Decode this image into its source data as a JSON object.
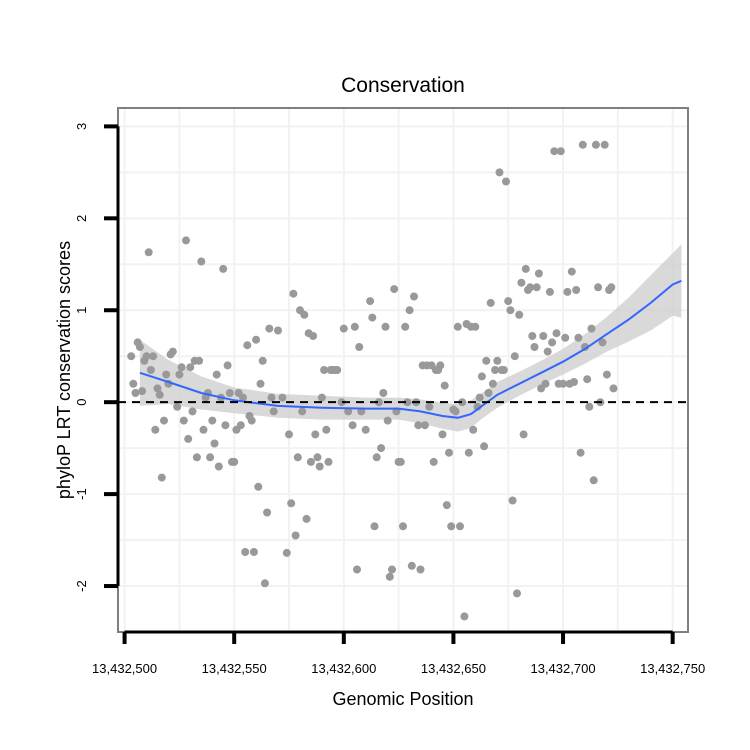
{
  "chart_data": {
    "type": "scatter",
    "title": "Conservation",
    "xlabel": "Genomic Position",
    "ylabel": "phyloP LRT conservation scores",
    "xlim": [
      13432497,
      13432757
    ],
    "ylim": [
      -2.5,
      3.2
    ],
    "x_ticks": [
      13432500,
      13432550,
      13432600,
      13432650,
      13432700,
      13432750
    ],
    "x_tick_labels": [
      "13,432,500",
      "13,432,550",
      "13,432,600",
      "13,432,650",
      "13,432,700",
      "13,432,750"
    ],
    "y_ticks": [
      -2,
      -1,
      0,
      1,
      2,
      3
    ],
    "y_tick_labels": [
      "-2",
      "-1",
      "0",
      "1",
      "2",
      "3"
    ],
    "reference_line": {
      "y": 0,
      "style": "dashed"
    },
    "colors": {
      "points": "#999999",
      "smooth": "#3366ff",
      "ribbon": "#cccccc",
      "panel_border": "#7f7f7f",
      "grid": "#f2f2f2"
    },
    "points": [
      [
        13432503,
        0.5
      ],
      [
        13432504,
        0.2
      ],
      [
        13432505,
        0.1
      ],
      [
        13432506,
        0.65
      ],
      [
        13432507,
        0.6
      ],
      [
        13432508,
        0.12
      ],
      [
        13432509,
        0.45
      ],
      [
        13432510,
        0.5
      ],
      [
        13432511,
        1.63
      ],
      [
        13432512,
        0.35
      ],
      [
        13432513,
        0.5
      ],
      [
        13432514,
        -0.3
      ],
      [
        13432515,
        0.15
      ],
      [
        13432516,
        0.08
      ],
      [
        13432517,
        -0.82
      ],
      [
        13432518,
        -0.2
      ],
      [
        13432519,
        0.3
      ],
      [
        13432520,
        0.2
      ],
      [
        13432521,
        0.52
      ],
      [
        13432522,
        0.55
      ],
      [
        13432524,
        -0.05
      ],
      [
        13432525,
        0.3
      ],
      [
        13432526,
        0.38
      ],
      [
        13432527,
        -0.2
      ],
      [
        13432528,
        1.76
      ],
      [
        13432529,
        -0.4
      ],
      [
        13432530,
        0.38
      ],
      [
        13432531,
        -0.1
      ],
      [
        13432532,
        0.45
      ],
      [
        13432533,
        -0.6
      ],
      [
        13432534,
        0.45
      ],
      [
        13432535,
        1.53
      ],
      [
        13432536,
        -0.3
      ],
      [
        13432537,
        0.05
      ],
      [
        13432538,
        0.1
      ],
      [
        13432539,
        -0.6
      ],
      [
        13432540,
        -0.2
      ],
      [
        13432541,
        -0.45
      ],
      [
        13432542,
        0.3
      ],
      [
        13432543,
        -0.7
      ],
      [
        13432544,
        0.05
      ],
      [
        13432545,
        1.45
      ],
      [
        13432546,
        -0.25
      ],
      [
        13432547,
        0.4
      ],
      [
        13432548,
        0.1
      ],
      [
        13432549,
        -0.65
      ],
      [
        13432550,
        -0.65
      ],
      [
        13432551,
        -0.3
      ],
      [
        13432552,
        0.1
      ],
      [
        13432553,
        -0.25
      ],
      [
        13432554,
        0.05
      ],
      [
        13432555,
        -1.63
      ],
      [
        13432556,
        0.62
      ],
      [
        13432557,
        -0.15
      ],
      [
        13432558,
        -0.2
      ],
      [
        13432559,
        -1.63
      ],
      [
        13432560,
        0.68
      ],
      [
        13432561,
        -0.92
      ],
      [
        13432562,
        0.2
      ],
      [
        13432563,
        0.45
      ],
      [
        13432564,
        -1.97
      ],
      [
        13432565,
        -1.2
      ],
      [
        13432566,
        0.8
      ],
      [
        13432567,
        0.05
      ],
      [
        13432568,
        -0.1
      ],
      [
        13432570,
        0.78
      ],
      [
        13432572,
        0.05
      ],
      [
        13432574,
        -1.64
      ],
      [
        13432575,
        -0.35
      ],
      [
        13432576,
        -1.1
      ],
      [
        13432577,
        1.18
      ],
      [
        13432578,
        -1.45
      ],
      [
        13432579,
        -0.6
      ],
      [
        13432580,
        1.0
      ],
      [
        13432581,
        -0.1
      ],
      [
        13432582,
        0.95
      ],
      [
        13432583,
        -1.27
      ],
      [
        13432584,
        0.75
      ],
      [
        13432585,
        -0.65
      ],
      [
        13432586,
        0.72
      ],
      [
        13432587,
        -0.35
      ],
      [
        13432588,
        -0.6
      ],
      [
        13432589,
        -0.7
      ],
      [
        13432590,
        0.05
      ],
      [
        13432591,
        0.35
      ],
      [
        13432592,
        -0.3
      ],
      [
        13432593,
        -0.65
      ],
      [
        13432594,
        0.35
      ],
      [
        13432595,
        0.35
      ],
      [
        13432596,
        0.35
      ],
      [
        13432597,
        0.35
      ],
      [
        13432599,
        0.0
      ],
      [
        13432600,
        0.8
      ],
      [
        13432602,
        -0.1
      ],
      [
        13432604,
        -0.25
      ],
      [
        13432605,
        0.82
      ],
      [
        13432606,
        -1.82
      ],
      [
        13432607,
        0.6
      ],
      [
        13432608,
        -0.1
      ],
      [
        13432610,
        -0.3
      ],
      [
        13432612,
        1.1
      ],
      [
        13432613,
        0.92
      ],
      [
        13432614,
        -1.35
      ],
      [
        13432615,
        -0.6
      ],
      [
        13432616,
        0.0
      ],
      [
        13432617,
        -0.5
      ],
      [
        13432618,
        0.1
      ],
      [
        13432619,
        0.82
      ],
      [
        13432620,
        -0.2
      ],
      [
        13432621,
        -1.9
      ],
      [
        13432622,
        -1.82
      ],
      [
        13432623,
        1.23
      ],
      [
        13432624,
        -0.1
      ],
      [
        13432625,
        -0.65
      ],
      [
        13432626,
        -0.65
      ],
      [
        13432627,
        -1.35
      ],
      [
        13432628,
        0.82
      ],
      [
        13432629,
        0.0
      ],
      [
        13432630,
        1.0
      ],
      [
        13432631,
        -1.78
      ],
      [
        13432632,
        1.15
      ],
      [
        13432633,
        0.0
      ],
      [
        13432634,
        -0.25
      ],
      [
        13432635,
        -1.82
      ],
      [
        13432636,
        0.4
      ],
      [
        13432637,
        -0.25
      ],
      [
        13432638,
        0.4
      ],
      [
        13432639,
        -0.05
      ],
      [
        13432640,
        0.4
      ],
      [
        13432641,
        -0.65
      ],
      [
        13432642,
        0.35
      ],
      [
        13432643,
        0.35
      ],
      [
        13432644,
        0.4
      ],
      [
        13432645,
        -0.35
      ],
      [
        13432646,
        0.18
      ],
      [
        13432647,
        -1.12
      ],
      [
        13432648,
        -0.55
      ],
      [
        13432649,
        -1.35
      ],
      [
        13432650,
        -0.08
      ],
      [
        13432651,
        -0.1
      ],
      [
        13432652,
        0.82
      ],
      [
        13432653,
        -1.35
      ],
      [
        13432654,
        0.0
      ],
      [
        13432655,
        -2.33
      ],
      [
        13432656,
        0.85
      ],
      [
        13432657,
        -0.55
      ],
      [
        13432658,
        0.82
      ],
      [
        13432659,
        -0.3
      ],
      [
        13432660,
        0.82
      ],
      [
        13432661,
        -0.05
      ],
      [
        13432662,
        0.05
      ],
      [
        13432663,
        0.28
      ],
      [
        13432664,
        -0.48
      ],
      [
        13432665,
        0.45
      ],
      [
        13432666,
        0.1
      ],
      [
        13432667,
        1.08
      ],
      [
        13432668,
        0.2
      ],
      [
        13432669,
        0.35
      ],
      [
        13432670,
        0.45
      ],
      [
        13432671,
        2.5
      ],
      [
        13432672,
        0.35
      ],
      [
        13432673,
        0.35
      ],
      [
        13432674,
        2.4
      ],
      [
        13432675,
        1.1
      ],
      [
        13432676,
        1.0
      ],
      [
        13432677,
        -1.07
      ],
      [
        13432678,
        0.5
      ],
      [
        13432679,
        -2.08
      ],
      [
        13432680,
        0.95
      ],
      [
        13432681,
        1.3
      ],
      [
        13432682,
        -0.35
      ],
      [
        13432683,
        1.45
      ],
      [
        13432684,
        1.22
      ],
      [
        13432685,
        1.25
      ],
      [
        13432686,
        0.72
      ],
      [
        13432687,
        0.6
      ],
      [
        13432688,
        1.25
      ],
      [
        13432689,
        1.4
      ],
      [
        13432690,
        0.15
      ],
      [
        13432691,
        0.72
      ],
      [
        13432692,
        0.2
      ],
      [
        13432693,
        0.55
      ],
      [
        13432694,
        1.2
      ],
      [
        13432695,
        0.65
      ],
      [
        13432696,
        2.73
      ],
      [
        13432697,
        0.75
      ],
      [
        13432698,
        0.2
      ],
      [
        13432699,
        2.73
      ],
      [
        13432700,
        0.2
      ],
      [
        13432701,
        0.7
      ],
      [
        13432702,
        1.2
      ],
      [
        13432703,
        0.2
      ],
      [
        13432704,
        1.42
      ],
      [
        13432705,
        0.22
      ],
      [
        13432706,
        1.22
      ],
      [
        13432707,
        0.7
      ],
      [
        13432708,
        -0.55
      ],
      [
        13432709,
        2.8
      ],
      [
        13432710,
        0.6
      ],
      [
        13432711,
        0.25
      ],
      [
        13432712,
        -0.05
      ],
      [
        13432713,
        0.8
      ],
      [
        13432714,
        -0.85
      ],
      [
        13432715,
        2.8
      ],
      [
        13432716,
        1.25
      ],
      [
        13432717,
        0.0
      ],
      [
        13432718,
        0.65
      ],
      [
        13432719,
        2.8
      ],
      [
        13432720,
        0.3
      ],
      [
        13432721,
        1.22
      ],
      [
        13432722,
        1.25
      ],
      [
        13432723,
        0.15
      ]
    ],
    "smooth": [
      [
        13432507,
        0.32
      ],
      [
        13432520,
        0.22
      ],
      [
        13432535,
        0.1
      ],
      [
        13432550,
        0.02
      ],
      [
        13432570,
        -0.04
      ],
      [
        13432590,
        -0.06
      ],
      [
        13432610,
        -0.07
      ],
      [
        13432625,
        -0.07
      ],
      [
        13432635,
        -0.1
      ],
      [
        13432645,
        -0.15
      ],
      [
        13432652,
        -0.17
      ],
      [
        13432658,
        -0.13
      ],
      [
        13432663,
        -0.04
      ],
      [
        13432670,
        0.08
      ],
      [
        13432680,
        0.2
      ],
      [
        13432690,
        0.32
      ],
      [
        13432700,
        0.44
      ],
      [
        13432710,
        0.58
      ],
      [
        13432720,
        0.74
      ],
      [
        13432730,
        0.9
      ],
      [
        13432740,
        1.08
      ],
      [
        13432750,
        1.28
      ],
      [
        13432754,
        1.32
      ]
    ],
    "ribbon_upper": [
      [
        13432507,
        0.68
      ],
      [
        13432520,
        0.46
      ],
      [
        13432535,
        0.28
      ],
      [
        13432550,
        0.16
      ],
      [
        13432570,
        0.09
      ],
      [
        13432590,
        0.07
      ],
      [
        13432610,
        0.05
      ],
      [
        13432625,
        0.05
      ],
      [
        13432635,
        0.03
      ],
      [
        13432645,
        -0.01
      ],
      [
        13432652,
        -0.02
      ],
      [
        13432658,
        0.02
      ],
      [
        13432663,
        0.1
      ],
      [
        13432670,
        0.22
      ],
      [
        13432680,
        0.33
      ],
      [
        13432690,
        0.45
      ],
      [
        13432700,
        0.58
      ],
      [
        13432710,
        0.74
      ],
      [
        13432720,
        0.93
      ],
      [
        13432730,
        1.14
      ],
      [
        13432740,
        1.38
      ],
      [
        13432750,
        1.62
      ],
      [
        13432754,
        1.72
      ]
    ],
    "ribbon_lower": [
      [
        13432507,
        -0.04
      ],
      [
        13432520,
        -0.02
      ],
      [
        13432535,
        -0.08
      ],
      [
        13432550,
        -0.12
      ],
      [
        13432570,
        -0.17
      ],
      [
        13432590,
        -0.19
      ],
      [
        13432610,
        -0.19
      ],
      [
        13432625,
        -0.19
      ],
      [
        13432635,
        -0.23
      ],
      [
        13432645,
        -0.29
      ],
      [
        13432652,
        -0.32
      ],
      [
        13432658,
        -0.28
      ],
      [
        13432663,
        -0.18
      ],
      [
        13432670,
        -0.06
      ],
      [
        13432680,
        0.07
      ],
      [
        13432690,
        0.19
      ],
      [
        13432700,
        0.3
      ],
      [
        13432710,
        0.42
      ],
      [
        13432720,
        0.55
      ],
      [
        13432730,
        0.66
      ],
      [
        13432740,
        0.78
      ],
      [
        13432750,
        0.94
      ],
      [
        13432754,
        0.92
      ]
    ]
  }
}
